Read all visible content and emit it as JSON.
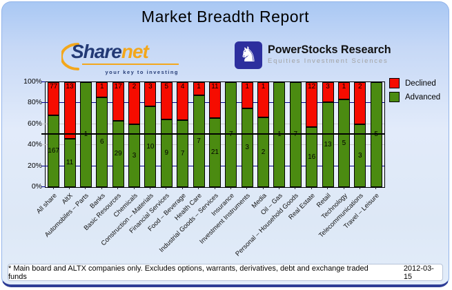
{
  "window": {
    "title": "Market Breadth Report"
  },
  "logos": {
    "sharenet": {
      "word_primary": "Share",
      "word_accent": "net",
      "tagline": "your key to investing",
      "primary_color": "#233a75",
      "accent_color": "#f3a71c"
    },
    "powerstocks": {
      "icon": "knight-icon",
      "icon_glyph": "♞",
      "icon_bg": "#2d2f9e",
      "name": "PowerStocks Research",
      "tagline": "Equities Investment Sciences"
    }
  },
  "chart_data": {
    "type": "bar",
    "stacked": true,
    "orientation": "vertical",
    "normalized_to": "100% per category; segment labels show company counts",
    "categories": [
      "All share",
      "AltX",
      "Automobiles – Parts",
      "Banks",
      "Basic Resources",
      "Chemicals",
      "Construction – Materials",
      "Financial Services",
      "Food – Beverage",
      "Health Care",
      "Industrial Goods – Services",
      "Insurance",
      "Investment Instruments",
      "Media",
      "Oil – Gas",
      "Personal – Household Goods",
      "Real Estate",
      "Retail",
      "Technology",
      "Telecommunications",
      "Travel – Leisure"
    ],
    "series": [
      {
        "name": "Declined",
        "color": "#f60c00",
        "values": [
          77,
          13,
          0,
          1,
          17,
          2,
          3,
          5,
          4,
          1,
          11,
          0,
          1,
          1,
          0,
          0,
          12,
          3,
          1,
          2,
          0
        ]
      },
      {
        "name": "Advanced",
        "color": "#4b8b11",
        "values": [
          167,
          11,
          1,
          6,
          29,
          3,
          10,
          9,
          7,
          7,
          21,
          7,
          3,
          2,
          1,
          7,
          16,
          13,
          5,
          3,
          5
        ]
      }
    ],
    "ylim": [
      0,
      100
    ],
    "yticks": [
      {
        "value": 0,
        "label": "0%",
        "color": "#00008b"
      },
      {
        "value": 20,
        "label": "20%",
        "color": "#00008b"
      },
      {
        "value": 40,
        "label": "40%",
        "color": "#c9c9c9"
      },
      {
        "value": 60,
        "label": "60%",
        "color": "#c9c9c9"
      },
      {
        "value": 80,
        "label": "80%",
        "color": "#00008b"
      },
      {
        "value": 100,
        "label": "100%",
        "color": "#00008b"
      }
    ],
    "gridlines": [
      {
        "value": 20,
        "color": "#00008b"
      },
      {
        "value": 40,
        "color": "#c9c9c9"
      },
      {
        "value": 60,
        "color": "#c9c9c9"
      },
      {
        "value": 80,
        "color": "#00008b"
      }
    ],
    "midline": {
      "value": 50,
      "color": "#000000"
    },
    "legend": {
      "position": "right",
      "items": [
        {
          "label": "Declined",
          "color": "#f60c00"
        },
        {
          "label": "Advanced",
          "color": "#4b8b11"
        }
      ]
    }
  },
  "footer": {
    "note": "* Main board and ALTX companies only. Excludes options, warrants, derivatives, debt and exchange traded funds",
    "date": "2012-03-15"
  }
}
